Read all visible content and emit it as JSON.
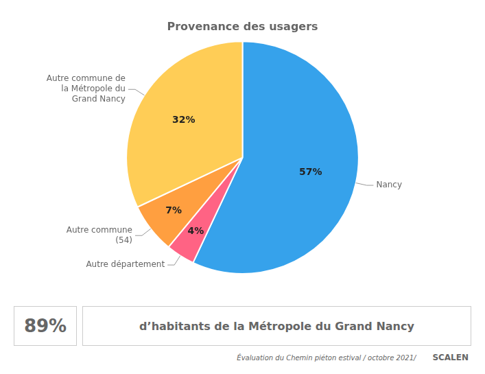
{
  "chart_data": {
    "type": "pie",
    "title": "Provenance des usagers",
    "categories": [
      "Nancy",
      "Autre département",
      "Autre commune\n(54)",
      "Autre commune de\nla Métropole du\nGrand Nancy"
    ],
    "values": [
      57,
      4,
      7,
      32
    ],
    "value_labels": [
      "57%",
      "4%",
      "7%",
      "32%"
    ],
    "data_labels": true,
    "annotations": [
      "89%",
      "d’habitants de la Métropole du Grand Nancy",
      "Évaluation du Chemin piéton estival / octobre 2021/",
      "SCALEN"
    ]
  }
}
